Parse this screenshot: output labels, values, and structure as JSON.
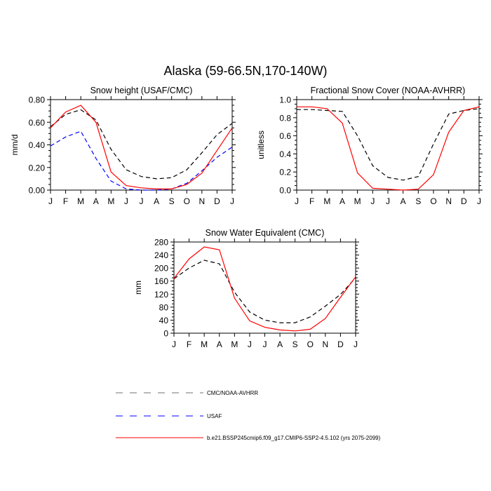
{
  "title": "Alaska (59-66.5N,170-140W)",
  "colors": {
    "cmc": "#000000",
    "usaf": "#0000ff",
    "model": "#ff0000"
  },
  "months": [
    "J",
    "F",
    "M",
    "A",
    "M",
    "J",
    "J",
    "A",
    "S",
    "O",
    "N",
    "D",
    "J"
  ],
  "chart_data": [
    {
      "type": "line",
      "title": "Snow height (USAF/CMC)",
      "ylabel": "mm/d",
      "xlabel": "",
      "ylim": [
        0,
        0.8
      ],
      "yticks": [
        0,
        0.2,
        0.4,
        0.6,
        0.8
      ],
      "ytick_labels": [
        "0.00",
        "0.20",
        "0.40",
        "0.60",
        "0.80"
      ],
      "categories": [
        "J",
        "F",
        "M",
        "A",
        "M",
        "J",
        "J",
        "A",
        "S",
        "O",
        "N",
        "D",
        "J"
      ],
      "series": [
        {
          "name": "CMC/NOAA-AVHRR",
          "style": "dashed",
          "color": "#000000",
          "values": [
            0.56,
            0.67,
            0.71,
            0.62,
            0.36,
            0.18,
            0.12,
            0.1,
            0.11,
            0.18,
            0.33,
            0.49,
            0.59
          ]
        },
        {
          "name": "USAF",
          "style": "dashed",
          "color": "#0000ff",
          "values": [
            0.39,
            0.47,
            0.52,
            0.28,
            0.08,
            0.01,
            0.0,
            0.0,
            0.01,
            0.06,
            0.17,
            0.29,
            0.38
          ]
        },
        {
          "name": "b.e21.BSSP245cmip6.f09_g17.CMIP6-SSP2-4.5.102 (yrs 2075-2099)",
          "style": "solid",
          "color": "#ff0000",
          "values": [
            0.55,
            0.69,
            0.75,
            0.6,
            0.16,
            0.04,
            0.02,
            0.01,
            0.01,
            0.05,
            0.15,
            0.35,
            0.55
          ]
        }
      ]
    },
    {
      "type": "line",
      "title": "Fractional Snow Cover (NOAA-AVHRR)",
      "ylabel": "unitless",
      "xlabel": "",
      "ylim": [
        0,
        1.0
      ],
      "yticks": [
        0,
        0.2,
        0.4,
        0.6,
        0.8,
        1.0
      ],
      "ytick_labels": [
        "0.0",
        "0.2",
        "0.4",
        "0.6",
        "0.8",
        "1.0"
      ],
      "categories": [
        "J",
        "F",
        "M",
        "A",
        "M",
        "J",
        "J",
        "A",
        "S",
        "O",
        "N",
        "D",
        "J"
      ],
      "series": [
        {
          "name": "CMC/NOAA-AVHRR",
          "style": "dashed",
          "color": "#000000",
          "values": [
            0.89,
            0.89,
            0.88,
            0.87,
            0.6,
            0.27,
            0.14,
            0.11,
            0.15,
            0.51,
            0.84,
            0.88,
            0.9
          ]
        },
        {
          "name": "b.e21.BSSP245cmip6.f09_g17.CMIP6-SSP2-4.5.102 (yrs 2075-2099)",
          "style": "solid",
          "color": "#ff0000",
          "values": [
            0.92,
            0.92,
            0.9,
            0.74,
            0.19,
            0.02,
            0.01,
            0.0,
            0.01,
            0.17,
            0.64,
            0.88,
            0.92
          ]
        }
      ]
    },
    {
      "type": "line",
      "title": "Snow Water Equivalent (CMC)",
      "ylabel": "mm",
      "xlabel": "",
      "ylim": [
        0,
        280
      ],
      "yticks": [
        0,
        40,
        80,
        120,
        160,
        200,
        240,
        280
      ],
      "ytick_labels": [
        "0",
        "40",
        "80",
        "120",
        "160",
        "200",
        "240",
        "280"
      ],
      "categories": [
        "J",
        "F",
        "M",
        "A",
        "M",
        "J",
        "J",
        "A",
        "S",
        "O",
        "N",
        "D",
        "J"
      ],
      "series": [
        {
          "name": "CMC/NOAA-AVHRR",
          "style": "dashed",
          "color": "#000000",
          "values": [
            167,
            200,
            224,
            213,
            126,
            65,
            40,
            32,
            32,
            50,
            83,
            119,
            170
          ]
        },
        {
          "name": "b.e21.BSSP245cmip6.f09_g17.CMIP6-SSP2-4.5.102 (yrs 2075-2099)",
          "style": "solid",
          "color": "#ff0000",
          "values": [
            168,
            228,
            265,
            256,
            108,
            38,
            18,
            10,
            7,
            12,
            45,
            110,
            173
          ]
        }
      ]
    }
  ],
  "legend": [
    {
      "label": "CMC/NOAA-AVHRR",
      "style": "dashed",
      "color": "#707070"
    },
    {
      "label": "USAF",
      "style": "dashed",
      "color": "#0000ff"
    },
    {
      "label": "b.e21.BSSP245cmip6.f09_g17.CMIP6-SSP2-4.5.102 (yrs 2075-2099)",
      "style": "solid",
      "color": "#ff0000"
    }
  ]
}
